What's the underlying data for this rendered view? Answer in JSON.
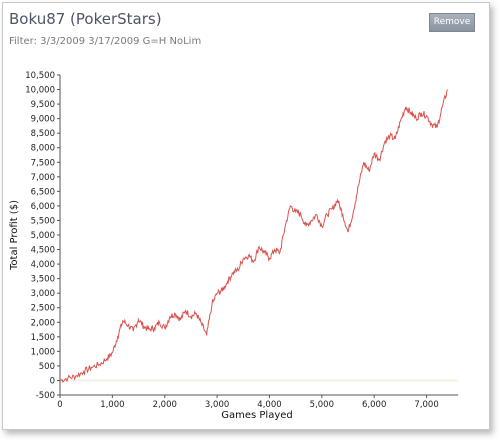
{
  "header": {
    "title": "Boku87 (PokerStars)",
    "filter": "Filter: 3/3/2009 3/17/2009 G=H NoLim",
    "remove_label": "Remove"
  },
  "colors": {
    "line": "#d9534f",
    "grid_fill": "#ffffff",
    "button": "#9aa3af"
  },
  "chart_data": {
    "type": "line",
    "xlabel": "Games Played",
    "ylabel": "Total Profit ($)",
    "xlim": [
      0,
      7600
    ],
    "ylim": [
      -500,
      10500
    ],
    "x_ticks": [
      0,
      1000,
      2000,
      3000,
      4000,
      5000,
      6000,
      7000
    ],
    "x_tick_labels": [
      "0",
      "1,000",
      "2,000",
      "3,000",
      "4,000",
      "5,000",
      "6,000",
      "7,000"
    ],
    "y_ticks": [
      -500,
      0,
      500,
      1000,
      1500,
      2000,
      2500,
      3000,
      3500,
      4000,
      4500,
      5000,
      5500,
      6000,
      6500,
      7000,
      7500,
      8000,
      8500,
      9000,
      9500,
      10000,
      10500
    ],
    "y_tick_labels": [
      "-500",
      "0",
      "500",
      "1,000",
      "1,500",
      "2,000",
      "2,500",
      "3,000",
      "3,500",
      "4,000",
      "4,500",
      "5,000",
      "5,500",
      "6,000",
      "6,500",
      "7,000",
      "7,500",
      "8,000",
      "8,500",
      "9,000",
      "9,500",
      "10,000",
      "10,500"
    ],
    "grid": false,
    "series": [
      {
        "x": [
          0,
          150,
          300,
          450,
          600,
          750,
          900,
          1000,
          1100,
          1200,
          1300,
          1400,
          1500,
          1600,
          1700,
          1800,
          1900,
          2000,
          2100,
          2200,
          2300,
          2400,
          2500,
          2600,
          2700,
          2800,
          2900,
          3000,
          3100,
          3200,
          3300,
          3400,
          3500,
          3600,
          3700,
          3800,
          3900,
          4000,
          4100,
          4200,
          4300,
          4400,
          4500,
          4600,
          4700,
          4800,
          4900,
          5000,
          5100,
          5200,
          5300,
          5400,
          5500,
          5600,
          5700,
          5800,
          5900,
          6000,
          6100,
          6200,
          6300,
          6400,
          6500,
          6600,
          6700,
          6800,
          6900,
          7000,
          7100,
          7200,
          7300,
          7400
        ],
        "y": [
          0,
          80,
          150,
          300,
          450,
          550,
          750,
          950,
          1500,
          2050,
          1900,
          1700,
          2100,
          1850,
          1750,
          1800,
          2000,
          1800,
          2200,
          2300,
          2100,
          2400,
          2200,
          2300,
          1950,
          1550,
          2600,
          3000,
          3100,
          3400,
          3700,
          3800,
          4200,
          4300,
          4100,
          4600,
          4400,
          4200,
          4500,
          4400,
          5300,
          6000,
          5800,
          5700,
          5300,
          5500,
          5700,
          5300,
          5700,
          5900,
          6200,
          5700,
          5100,
          5800,
          6700,
          7500,
          7200,
          7800,
          7600,
          8200,
          8400,
          8300,
          8900,
          9400,
          9200,
          9000,
          9200,
          9100,
          8800,
          8700,
          9400,
          10000
        ]
      }
    ]
  }
}
